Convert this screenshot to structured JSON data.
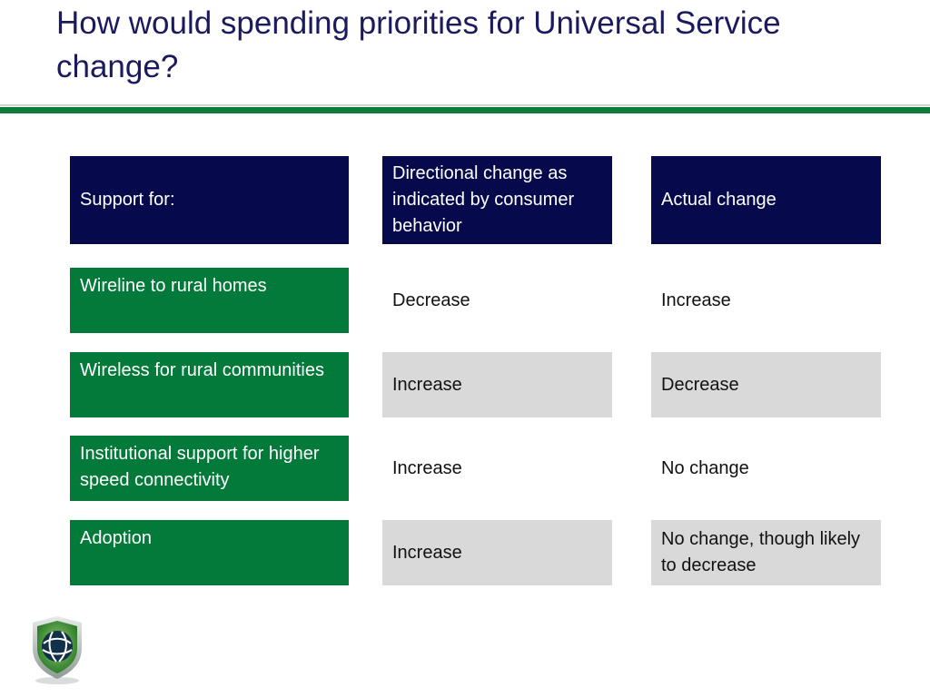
{
  "slide": {
    "title": "How would spending priorities for Universal Service change?"
  },
  "table": {
    "headers": [
      "Support for:",
      "Directional change as indicated by consumer behavior",
      "Actual change"
    ],
    "rows": [
      {
        "label": "Wireline to rural homes",
        "directional": "Decrease",
        "actual": "Increase"
      },
      {
        "label": "Wireless for rural communities",
        "directional": "Increase",
        "actual": "Decrease"
      },
      {
        "label": "Institutional support for higher speed connectivity",
        "directional": "Increase",
        "actual": "No change"
      },
      {
        "label": "Adoption",
        "directional": "Increase",
        "actual": "No change, though likely to decrease"
      }
    ]
  },
  "colors": {
    "title": "#1b1a5e",
    "header_bg": "#060a4d",
    "label_bg": "#037a3a",
    "band_bg": "#d9d9d9",
    "rule": "#0e7a3b"
  },
  "logo": {
    "icon": "shield-globe-icon"
  }
}
